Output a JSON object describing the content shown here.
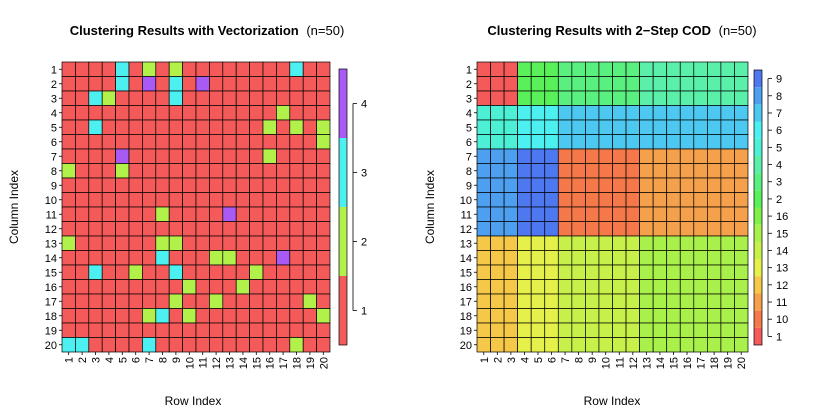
{
  "chart_data": [
    {
      "type": "heatmap",
      "title_bold": "Clustering Results with Vectorization",
      "title_rest": "(n=50)",
      "xlabel": "Row Index",
      "ylabel": "Column Index",
      "x_ticks": [
        "1",
        "2",
        "3",
        "4",
        "5",
        "6",
        "7",
        "8",
        "9",
        "10",
        "11",
        "12",
        "13",
        "14",
        "15",
        "16",
        "17",
        "18",
        "19",
        "20"
      ],
      "y_ticks": [
        "1",
        "2",
        "3",
        "4",
        "5",
        "6",
        "7",
        "8",
        "9",
        "10",
        "11",
        "12",
        "13",
        "14",
        "15",
        "16",
        "17",
        "18",
        "19",
        "20"
      ],
      "legend": {
        "labels": [
          "1",
          "2",
          "3",
          "4"
        ],
        "colors": [
          "#F55A5A",
          "#B2F04A",
          "#4DF0F0",
          "#A95AF5"
        ]
      },
      "grid": [
        [
          1,
          1,
          1,
          1,
          3,
          1,
          2,
          1,
          2,
          1,
          1,
          1,
          1,
          1,
          1,
          1,
          1,
          3,
          1,
          1
        ],
        [
          1,
          1,
          1,
          1,
          3,
          1,
          4,
          1,
          3,
          1,
          4,
          1,
          1,
          1,
          1,
          1,
          1,
          1,
          1,
          1
        ],
        [
          1,
          1,
          3,
          2,
          1,
          1,
          1,
          1,
          3,
          1,
          1,
          1,
          1,
          1,
          1,
          1,
          1,
          1,
          1,
          1
        ],
        [
          1,
          1,
          1,
          1,
          1,
          1,
          1,
          1,
          1,
          1,
          1,
          1,
          1,
          1,
          1,
          1,
          2,
          1,
          1,
          1
        ],
        [
          1,
          1,
          3,
          1,
          1,
          1,
          1,
          1,
          1,
          1,
          1,
          1,
          1,
          1,
          1,
          2,
          1,
          2,
          1,
          2
        ],
        [
          1,
          1,
          1,
          1,
          1,
          1,
          1,
          1,
          1,
          1,
          1,
          1,
          1,
          1,
          1,
          1,
          1,
          1,
          1,
          2
        ],
        [
          1,
          1,
          1,
          1,
          4,
          1,
          1,
          1,
          1,
          1,
          1,
          1,
          1,
          1,
          1,
          2,
          1,
          1,
          1,
          1
        ],
        [
          2,
          1,
          1,
          1,
          2,
          1,
          1,
          1,
          1,
          1,
          1,
          1,
          1,
          1,
          1,
          1,
          1,
          1,
          1,
          1
        ],
        [
          1,
          1,
          1,
          1,
          1,
          1,
          1,
          1,
          1,
          1,
          1,
          1,
          1,
          1,
          1,
          1,
          1,
          1,
          1,
          1
        ],
        [
          1,
          1,
          1,
          1,
          1,
          1,
          1,
          1,
          1,
          1,
          1,
          1,
          1,
          1,
          1,
          1,
          1,
          1,
          1,
          1
        ],
        [
          1,
          1,
          1,
          1,
          1,
          1,
          1,
          2,
          1,
          1,
          1,
          1,
          4,
          1,
          1,
          1,
          1,
          1,
          1,
          1
        ],
        [
          1,
          1,
          1,
          1,
          1,
          1,
          1,
          1,
          1,
          1,
          1,
          1,
          1,
          1,
          1,
          1,
          1,
          1,
          1,
          1
        ],
        [
          2,
          1,
          1,
          1,
          1,
          1,
          1,
          2,
          2,
          1,
          1,
          1,
          1,
          1,
          1,
          1,
          1,
          1,
          1,
          1
        ],
        [
          1,
          1,
          1,
          1,
          1,
          1,
          1,
          3,
          1,
          1,
          1,
          2,
          2,
          1,
          1,
          1,
          4,
          1,
          1,
          1
        ],
        [
          1,
          1,
          3,
          1,
          1,
          2,
          1,
          1,
          3,
          1,
          1,
          1,
          1,
          1,
          2,
          1,
          1,
          1,
          1,
          1
        ],
        [
          1,
          1,
          1,
          1,
          1,
          1,
          1,
          1,
          1,
          2,
          1,
          1,
          1,
          2,
          1,
          1,
          1,
          1,
          1,
          1
        ],
        [
          1,
          1,
          1,
          1,
          1,
          1,
          1,
          1,
          2,
          1,
          1,
          2,
          1,
          1,
          1,
          1,
          1,
          1,
          2,
          1
        ],
        [
          1,
          1,
          1,
          1,
          1,
          1,
          2,
          3,
          1,
          2,
          1,
          1,
          1,
          1,
          1,
          1,
          1,
          1,
          1,
          2
        ],
        [
          1,
          1,
          1,
          1,
          1,
          1,
          1,
          1,
          1,
          1,
          1,
          1,
          1,
          1,
          1,
          1,
          1,
          1,
          1,
          1
        ],
        [
          3,
          3,
          1,
          1,
          1,
          1,
          3,
          1,
          1,
          1,
          1,
          1,
          1,
          1,
          1,
          1,
          1,
          2,
          1,
          1
        ]
      ]
    },
    {
      "type": "heatmap",
      "title_bold": "Clustering Results with 2−Step COD",
      "title_rest": "(n=50)",
      "xlabel": "Row Index",
      "ylabel": "Column Index",
      "x_ticks": [
        "1",
        "2",
        "3",
        "4",
        "5",
        "6",
        "7",
        "8",
        "9",
        "10",
        "11",
        "12",
        "13",
        "14",
        "15",
        "16",
        "17",
        "18",
        "19",
        "20"
      ],
      "y_ticks": [
        "1",
        "2",
        "3",
        "4",
        "5",
        "6",
        "7",
        "8",
        "9",
        "10",
        "11",
        "12",
        "13",
        "14",
        "15",
        "16",
        "17",
        "18",
        "19",
        "20"
      ],
      "row_blocks": [
        {
          "rows": [
            1,
            3
          ],
          "clusters": [
            1,
            2,
            3,
            4
          ]
        },
        {
          "rows": [
            4,
            6
          ],
          "clusters": [
            5,
            6,
            7,
            7
          ]
        },
        {
          "rows": [
            7,
            12
          ],
          "clusters": [
            8,
            9,
            10,
            11
          ]
        },
        {
          "rows": [
            13,
            20
          ],
          "clusters": [
            12,
            13,
            14,
            15
          ]
        }
      ],
      "col_blocks": [
        [
          1,
          3
        ],
        [
          4,
          6
        ],
        [
          7,
          12
        ],
        [
          13,
          20
        ]
      ],
      "legend": {
        "labels": [
          "1",
          "10",
          "11",
          "12",
          "13",
          "14",
          "15",
          "16",
          "2",
          "3",
          "4",
          "5",
          "6",
          "7",
          "8",
          "9"
        ],
        "colors": [
          "#F55A5A",
          "#F5784A",
          "#F5A04A",
          "#F5C84A",
          "#E6F04A",
          "#C8F04A",
          "#A9F04A",
          "#7FF04A",
          "#5AF05A",
          "#5AF07F",
          "#5AF0A9",
          "#4DF0D4",
          "#4DF0F0",
          "#4DC8F0",
          "#4DA0F0",
          "#4D78F0"
        ]
      }
    }
  ]
}
